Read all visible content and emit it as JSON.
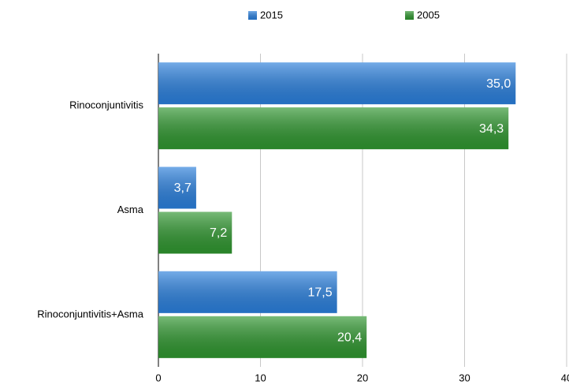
{
  "chart_data": {
    "type": "hbar",
    "categories": [
      "Rinoconjuntivitis",
      "Asma",
      "Rinoconjuntivitis+Asma"
    ],
    "series": [
      {
        "name": "2015",
        "color": "#2a7fdc",
        "values": [
          35.0,
          3.7,
          17.5
        ],
        "value_labels": [
          "35,0",
          "3,7",
          "17,5"
        ]
      },
      {
        "name": "2005",
        "color": "#2f962f",
        "values": [
          34.3,
          7.2,
          20.4
        ],
        "value_labels": [
          "34,3",
          "7,2",
          "20,4"
        ]
      }
    ],
    "xlim": [
      0,
      40
    ],
    "xticks": [
      0,
      10,
      20,
      30,
      40
    ],
    "grid": true,
    "legend": "top"
  }
}
